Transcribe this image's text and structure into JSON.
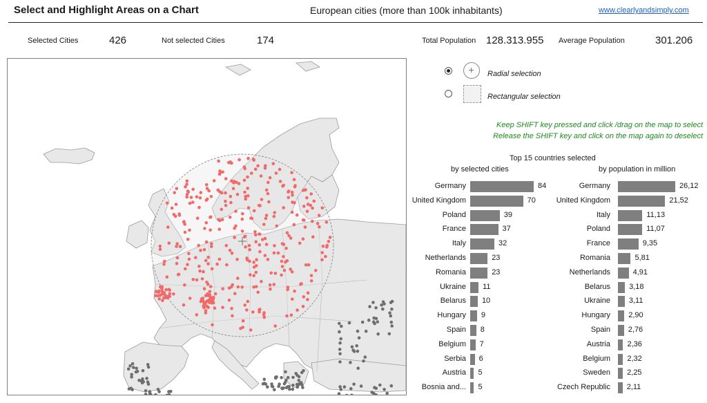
{
  "header": {
    "title": "Select and Highlight Areas on a Chart",
    "subtitle": "European cities (more than 100k inhabitants)",
    "link": "www.clearlyandsimply.com"
  },
  "stats": {
    "selected_label": "Selected Cities",
    "selected_value": "426",
    "not_selected_label": "Not selected Cities",
    "not_selected_value": "174",
    "total_label": "Total Population",
    "total_value": "128.313.955",
    "average_label": "Average Population",
    "average_value": "301.206"
  },
  "selection": {
    "radial_label": "Radial  selection",
    "rect_label": "Rectangular selection",
    "mode": "radial",
    "hint1": "Keep SHIFT key pressed and click /drag on the map to select",
    "hint2": "Release the SHIFT key and click on the map again to deselect"
  },
  "colors": {
    "selected": "#f06a6a",
    "unselected": "#6e6e6e",
    "bar": "#7f7f7f",
    "hint": "#1e8a1e",
    "link": "#1f5fbf"
  },
  "chart_data": [
    {
      "type": "bar",
      "title": "Top 15 countries selected",
      "subtitle": "by selected cities",
      "categories": [
        "Germany",
        "United Kingdom",
        "Poland",
        "France",
        "Italy",
        "Netherlands",
        "Romania",
        "Ukraine",
        "Belarus",
        "Hungary",
        "Spain",
        "Belgium",
        "Serbia",
        "Austria",
        "Bosnia and..."
      ],
      "values": [
        84,
        70,
        39,
        37,
        32,
        23,
        23,
        11,
        10,
        9,
        8,
        7,
        6,
        5,
        5
      ],
      "labels": [
        "84",
        "70",
        "39",
        "37",
        "32",
        "23",
        "23",
        "11",
        "10",
        "9",
        "8",
        "7",
        "6",
        "5",
        "5"
      ]
    },
    {
      "type": "bar",
      "subtitle": "by population in million",
      "categories": [
        "Germany",
        "United Kingdom",
        "Italy",
        "Poland",
        "France",
        "Romania",
        "Netherlands",
        "Belarus",
        "Ukraine",
        "Hungary",
        "Spain",
        "Austria",
        "Belgium",
        "Sweden",
        "Czech Republic"
      ],
      "values": [
        26.12,
        21.52,
        11.13,
        11.07,
        9.35,
        5.81,
        4.91,
        3.18,
        3.11,
        2.9,
        2.76,
        2.36,
        2.32,
        2.25,
        2.11
      ],
      "labels": [
        "26,12",
        "21,52",
        "11,13",
        "11,07",
        "9,35",
        "5,81",
        "4,91",
        "3,18",
        "3,11",
        "2,90",
        "2,76",
        "2,36",
        "2,32",
        "2,25",
        "2,11"
      ]
    }
  ]
}
